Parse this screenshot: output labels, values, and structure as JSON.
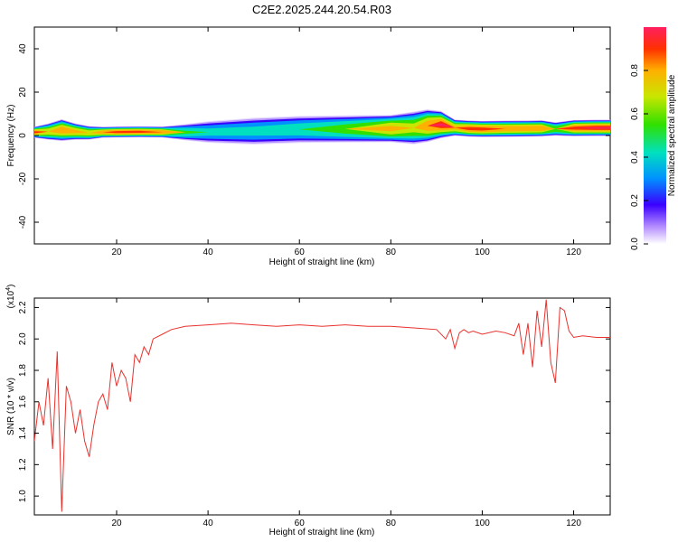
{
  "title": "C2E2.2025.244.20.54.R03",
  "chart_data": [
    {
      "type": "heatmap",
      "xlabel": "Height of straight line (km)",
      "ylabel": "Frequency (Hz)",
      "xlim": [
        2,
        128
      ],
      "ylim": [
        -50,
        50
      ],
      "x_ticks": [
        20,
        40,
        60,
        80,
        100,
        120
      ],
      "y_ticks": [
        -40,
        -20,
        0,
        20,
        40
      ],
      "colorbar": {
        "label": "Normalized spectral amplitude",
        "range": [
          0,
          1
        ],
        "ticks": [
          0.0,
          0.2,
          0.4,
          0.6,
          0.8
        ]
      },
      "ridge": {
        "x": [
          2,
          5,
          8,
          11,
          14,
          17,
          20,
          25,
          30,
          35,
          40,
          50,
          60,
          70,
          80,
          85,
          88,
          91,
          94,
          97,
          100,
          105,
          110,
          113,
          116,
          120,
          125,
          128
        ],
        "center_hz": [
          1.5,
          1.8,
          2.5,
          1.8,
          1.2,
          1.5,
          1.6,
          1.7,
          1.6,
          1.5,
          1.6,
          2.0,
          2.8,
          3.0,
          3.2,
          3.5,
          4.5,
          5.0,
          3.6,
          3.2,
          3.0,
          3.1,
          3.2,
          3.3,
          3.0,
          3.4,
          3.5,
          3.5
        ],
        "width_hz": [
          2,
          3,
          4,
          3,
          2.5,
          2,
          2,
          2,
          2,
          3,
          4,
          5,
          5,
          5,
          5,
          6,
          6,
          5,
          3,
          3,
          3,
          3,
          3,
          3,
          2.5,
          3,
          3,
          3
        ],
        "peak": [
          0.95,
          0.8,
          0.9,
          0.85,
          0.8,
          0.9,
          0.95,
          0.95,
          0.9,
          0.6,
          0.5,
          0.5,
          0.55,
          0.65,
          0.85,
          0.75,
          0.9,
          0.98,
          0.85,
          0.95,
          0.95,
          0.9,
          0.9,
          0.9,
          0.7,
          0.95,
          0.98,
          0.98
        ]
      }
    },
    {
      "type": "line",
      "xlabel": "Height of straight line (km)",
      "ylabel": "SNR (10 * v/v)",
      "y_multiplier": "(x10",
      "y_multiplier_exp": "4",
      "xlim": [
        2,
        128
      ],
      "ylim": [
        0.88,
        2.26
      ],
      "x_ticks": [
        20,
        40,
        60,
        80,
        100,
        120
      ],
      "y_ticks": [
        1.0,
        1.2,
        1.4,
        1.6,
        1.8,
        2.0,
        2.2
      ],
      "series_color": "#e8322d",
      "x": [
        2,
        3,
        4,
        5,
        6,
        7,
        8,
        9,
        10,
        11,
        12,
        13,
        14,
        15,
        16,
        17,
        18,
        19,
        20,
        21,
        22,
        23,
        24,
        25,
        26,
        27,
        28,
        30,
        32,
        35,
        40,
        45,
        50,
        55,
        60,
        65,
        70,
        75,
        80,
        85,
        90,
        92,
        93,
        94,
        95,
        96,
        97,
        98,
        100,
        103,
        105,
        107,
        108,
        109,
        110,
        111,
        112,
        113,
        114,
        115,
        116,
        117,
        118,
        119,
        120,
        122,
        125,
        128
      ],
      "y": [
        1.35,
        1.6,
        1.45,
        1.75,
        1.3,
        1.92,
        0.9,
        1.7,
        1.6,
        1.4,
        1.55,
        1.35,
        1.25,
        1.45,
        1.6,
        1.65,
        1.55,
        1.85,
        1.7,
        1.8,
        1.75,
        1.6,
        1.9,
        1.85,
        1.95,
        1.9,
        2.0,
        2.03,
        2.06,
        2.08,
        2.09,
        2.1,
        2.09,
        2.08,
        2.09,
        2.08,
        2.09,
        2.08,
        2.08,
        2.07,
        2.06,
        2.0,
        2.06,
        1.94,
        2.04,
        2.06,
        2.04,
        2.05,
        2.03,
        2.05,
        2.04,
        2.02,
        2.1,
        1.9,
        2.1,
        1.82,
        2.18,
        1.95,
        2.25,
        1.85,
        1.72,
        2.2,
        2.18,
        2.05,
        2.01,
        2.02,
        2.01,
        2.01
      ]
    }
  ]
}
